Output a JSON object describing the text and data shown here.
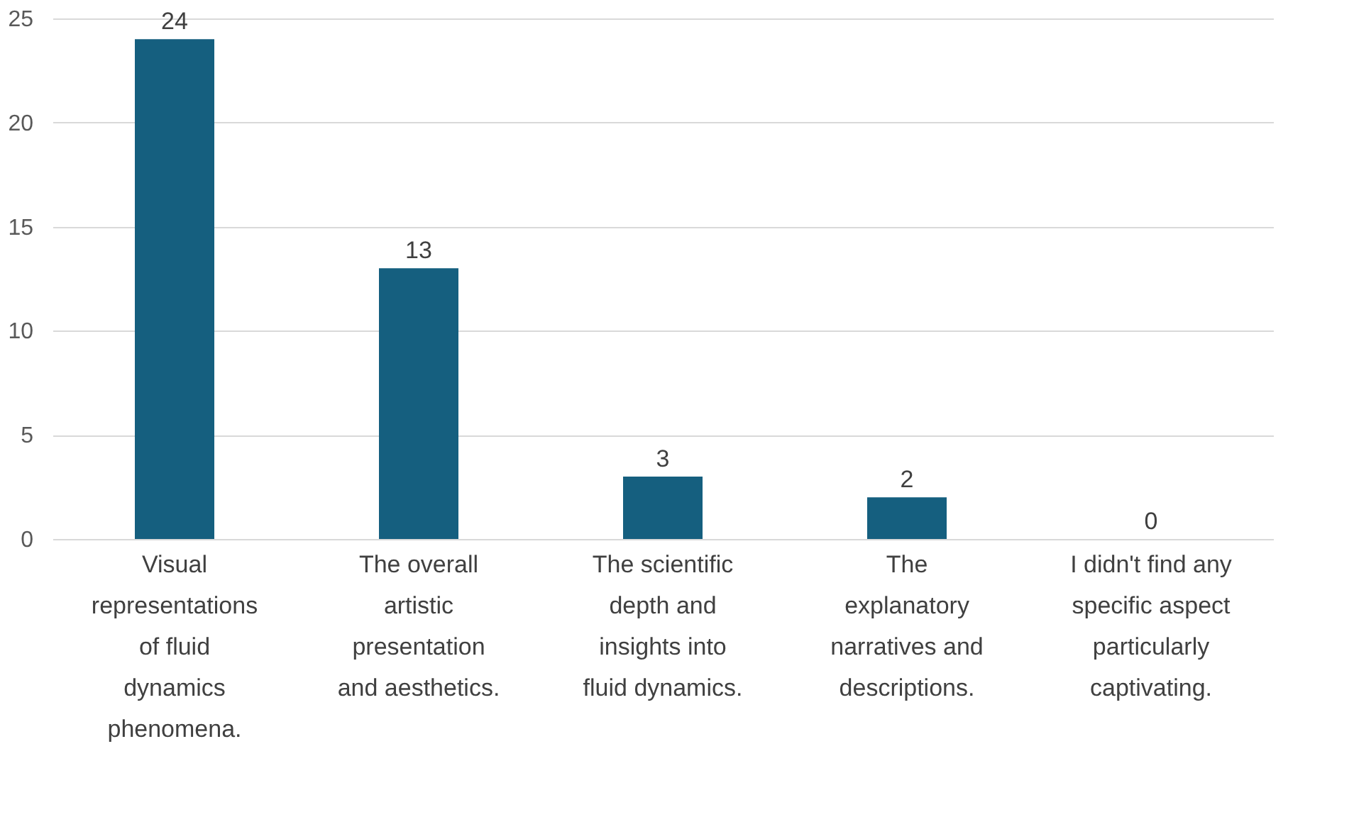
{
  "chart_data": {
    "type": "bar",
    "categories": [
      "Visual representations of fluid dynamics phenomena.",
      "The overall artistic presentation and aesthetics.",
      "The scientific depth and insights into fluid dynamics.",
      "The explanatory narratives and descriptions.",
      "I didn't find any specific aspect particularly captivating."
    ],
    "values": [
      24,
      13,
      3,
      2,
      0
    ],
    "color": "#155f7f",
    "ylim": [
      0,
      25
    ],
    "yticks": [
      0,
      5,
      10,
      15,
      20,
      25
    ],
    "grid": "y",
    "data_labels": true
  }
}
